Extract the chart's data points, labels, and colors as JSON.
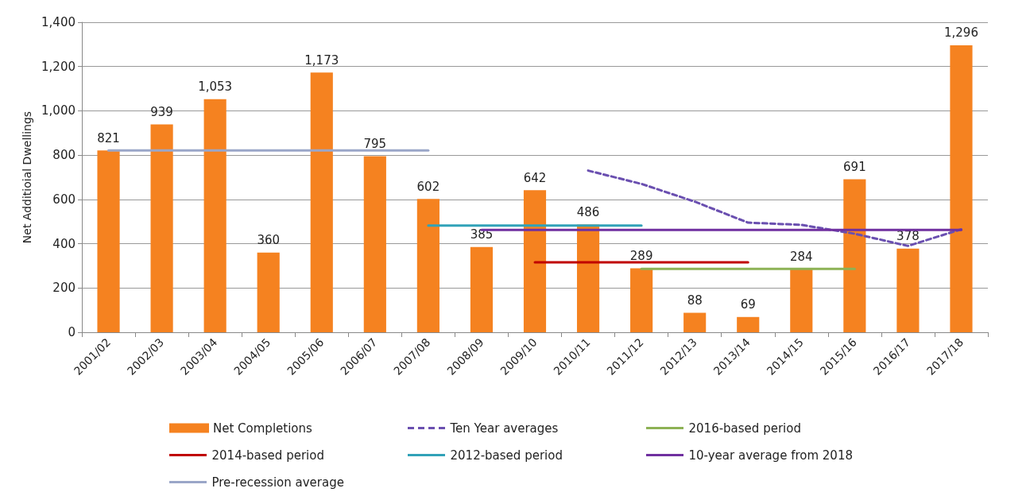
{
  "chart_data": {
    "type": "bar",
    "ylabel": "Net Additioial Dwellings",
    "categories": [
      "2001/02",
      "2002/03",
      "2003/04",
      "2004/05",
      "2005/06",
      "2006/07",
      "2007/08",
      "2008/09",
      "2009/10",
      "2010/11",
      "2011/12",
      "2012/13",
      "2013/14",
      "2014/15",
      "2015/16",
      "2016/17",
      "2017/18"
    ],
    "series": [
      {
        "name": "Net Completions",
        "color": "#f58220",
        "values": [
          821,
          939,
          1053,
          360,
          1173,
          795,
          602,
          385,
          642,
          486,
          289,
          88,
          69,
          284,
          691,
          378,
          1296
        ],
        "value_labels": [
          "821",
          "939",
          "1,053",
          "360",
          "1,173",
          "795",
          "602",
          "385",
          "642",
          "486",
          "289",
          "88",
          "69",
          "284",
          "691",
          "378",
          "1,296"
        ]
      },
      {
        "name": "Ten Year averages",
        "type": "line",
        "line_style": "dashed",
        "color": "#6a4fb0",
        "values": [
          null,
          null,
          null,
          null,
          null,
          null,
          null,
          null,
          null,
          730,
          670,
          590,
          495,
          485,
          445,
          390,
          465
        ]
      },
      {
        "name": "2016-based period",
        "type": "line",
        "color": "#8db255",
        "values": [
          null,
          null,
          null,
          null,
          null,
          null,
          null,
          null,
          null,
          null,
          286,
          286,
          286,
          286,
          286,
          null,
          null
        ]
      },
      {
        "name": "2014-based period",
        "type": "line",
        "color": "#c00000",
        "values": [
          null,
          null,
          null,
          null,
          null,
          null,
          null,
          null,
          316,
          316,
          316,
          316,
          316,
          null,
          null,
          null,
          null
        ]
      },
      {
        "name": "2012-based period",
        "type": "line",
        "color": "#31a2b8",
        "values": [
          null,
          null,
          null,
          null,
          null,
          null,
          482,
          482,
          482,
          482,
          482,
          null,
          null,
          null,
          null,
          null,
          null
        ]
      },
      {
        "name": "10-year average from 2018",
        "type": "line",
        "color": "#7030a0",
        "values": [
          null,
          null,
          null,
          null,
          null,
          null,
          null,
          462,
          462,
          462,
          462,
          462,
          462,
          462,
          462,
          462,
          462
        ]
      },
      {
        "name": "Pre-recession average",
        "type": "line",
        "color": "#9aa6c8",
        "values": [
          821,
          821,
          821,
          821,
          821,
          821,
          821,
          null,
          null,
          null,
          null,
          null,
          null,
          null,
          null,
          null,
          null
        ]
      }
    ],
    "ylim": [
      0,
      1400
    ],
    "yticks": [
      0,
      200,
      400,
      600,
      800,
      {
        "value": 1000,
        "label": "1,000"
      },
      {
        "value": 1200,
        "label": "1,200"
      },
      {
        "value": 1400,
        "label": "1,400"
      }
    ],
    "grid": "y",
    "legend": "bottom",
    "marker": "none"
  }
}
